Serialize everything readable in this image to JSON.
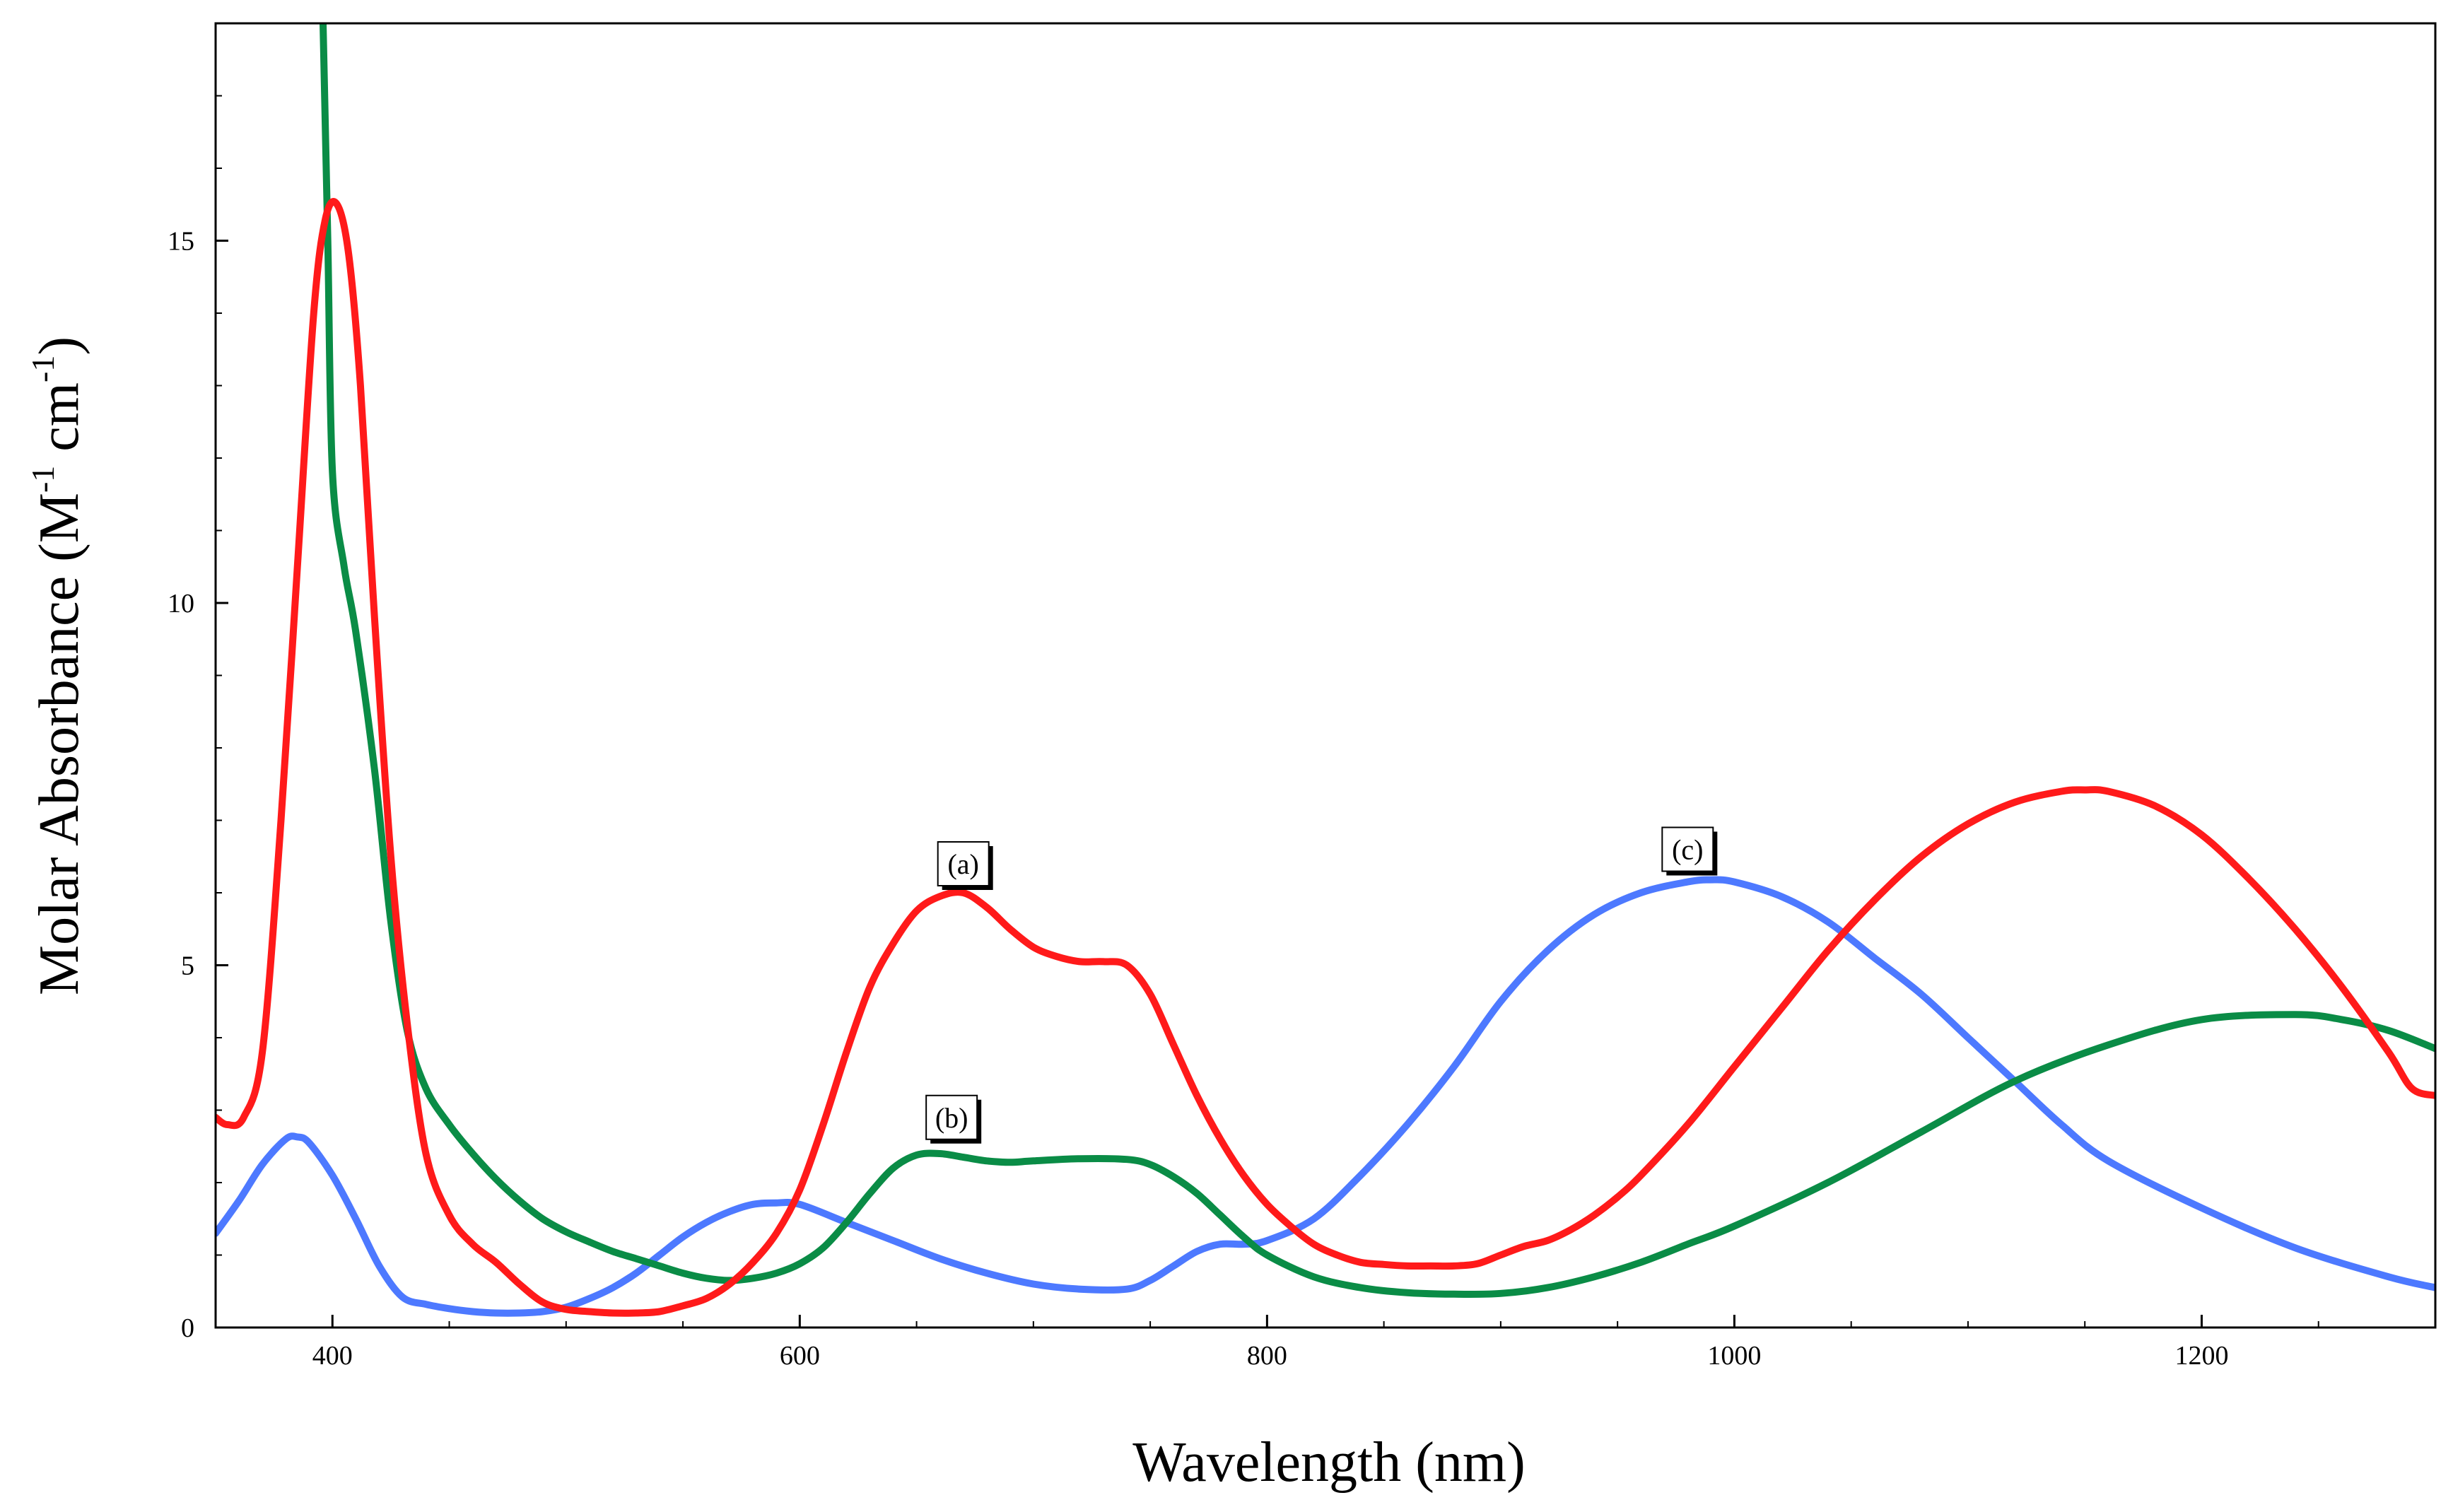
{
  "chart_data": {
    "type": "line",
    "title": "",
    "xlabel": "Wavelength (nm)",
    "ylabel": {
      "main": "Molar Absorbance (M",
      "sup1": "-1",
      "mid": " cm",
      "sup2": "-1",
      "end": ")"
    },
    "xlim": [
      350,
      1300
    ],
    "ylim": [
      0,
      18
    ],
    "grid": false,
    "x_ticks": [
      {
        "value": 400,
        "label": "400"
      },
      {
        "value": 600,
        "label": "600"
      },
      {
        "value": 800,
        "label": "800"
      },
      {
        "value": 1000,
        "label": "1000"
      },
      {
        "value": 1200,
        "label": "1200"
      }
    ],
    "y_ticks": [
      {
        "value": 0,
        "label": "0"
      },
      {
        "value": 5,
        "label": "5"
      },
      {
        "value": 10,
        "label": "10"
      },
      {
        "value": 15,
        "label": "15"
      }
    ],
    "series": [
      {
        "name": "(a)",
        "color": "#ff1a1a",
        "x": [
          350,
          355,
          362,
          370,
          378,
          385,
          392,
          397,
          402,
          407,
          412,
          418,
          425,
          432,
          440,
          450,
          460,
          470,
          480,
          490,
          500,
          510,
          520,
          530,
          540,
          550,
          560,
          570,
          580,
          590,
          600,
          610,
          620,
          630,
          640,
          650,
          660,
          670,
          680,
          690,
          700,
          710,
          720,
          730,
          740,
          750,
          760,
          770,
          780,
          790,
          800,
          810,
          820,
          830,
          840,
          850,
          860,
          870,
          880,
          890,
          900,
          910,
          920,
          930,
          940,
          950,
          960,
          980,
          1000,
          1020,
          1040,
          1060,
          1080,
          1100,
          1120,
          1140,
          1150,
          1160,
          1180,
          1200,
          1220,
          1240,
          1260,
          1280,
          1290,
          1300
        ],
        "y": [
          2.9,
          2.8,
          2.9,
          3.8,
          7.0,
          10.5,
          14.0,
          15.3,
          15.5,
          14.8,
          13.0,
          9.8,
          6.5,
          4.2,
          2.4,
          1.55,
          1.15,
          0.9,
          0.6,
          0.35,
          0.25,
          0.22,
          0.2,
          0.2,
          0.22,
          0.3,
          0.4,
          0.6,
          0.9,
          1.3,
          1.9,
          2.8,
          3.8,
          4.7,
          5.3,
          5.75,
          5.95,
          6.0,
          5.8,
          5.5,
          5.25,
          5.12,
          5.05,
          5.05,
          5.0,
          4.6,
          3.9,
          3.2,
          2.6,
          2.1,
          1.7,
          1.4,
          1.15,
          1.0,
          0.9,
          0.87,
          0.85,
          0.85,
          0.85,
          0.88,
          1.0,
          1.12,
          1.2,
          1.35,
          1.55,
          1.8,
          2.1,
          2.8,
          3.6,
          4.4,
          5.2,
          5.9,
          6.5,
          6.95,
          7.25,
          7.4,
          7.42,
          7.4,
          7.2,
          6.8,
          6.2,
          5.5,
          4.7,
          3.8,
          3.3,
          3.2
        ]
      },
      {
        "name": "(b)",
        "color": "#0a8c46",
        "x": [
          396,
          398,
          400,
          405,
          410,
          418,
          425,
          432,
          440,
          450,
          460,
          470,
          480,
          490,
          500,
          510,
          520,
          530,
          540,
          550,
          560,
          570,
          580,
          590,
          600,
          610,
          620,
          630,
          640,
          650,
          660,
          670,
          680,
          690,
          700,
          720,
          740,
          750,
          760,
          770,
          780,
          790,
          800,
          820,
          840,
          860,
          880,
          900,
          920,
          940,
          960,
          980,
          1000,
          1040,
          1080,
          1120,
          1160,
          1200,
          1240,
          1260,
          1280,
          1300
        ],
        "y": [
          18.0,
          15.0,
          11.8,
          10.5,
          9.6,
          7.7,
          5.6,
          4.1,
          3.3,
          2.8,
          2.4,
          2.05,
          1.75,
          1.5,
          1.32,
          1.18,
          1.05,
          0.95,
          0.85,
          0.75,
          0.68,
          0.65,
          0.68,
          0.75,
          0.88,
          1.1,
          1.45,
          1.85,
          2.2,
          2.38,
          2.4,
          2.35,
          2.3,
          2.28,
          2.3,
          2.33,
          2.32,
          2.25,
          2.08,
          1.85,
          1.55,
          1.25,
          1.0,
          0.7,
          0.55,
          0.48,
          0.46,
          0.47,
          0.55,
          0.7,
          0.9,
          1.15,
          1.4,
          2.0,
          2.7,
          3.4,
          3.9,
          4.25,
          4.32,
          4.25,
          4.1,
          3.85
        ]
      },
      {
        "name": "(c)",
        "color": "#4d79ff",
        "x": [
          350,
          360,
          370,
          380,
          385,
          390,
          400,
          410,
          420,
          430,
          440,
          450,
          460,
          470,
          480,
          490,
          500,
          510,
          520,
          530,
          540,
          550,
          560,
          570,
          580,
          590,
          600,
          620,
          640,
          660,
          680,
          700,
          720,
          740,
          750,
          760,
          770,
          780,
          790,
          800,
          820,
          840,
          860,
          880,
          900,
          920,
          940,
          960,
          980,
          990,
          1000,
          1020,
          1040,
          1060,
          1080,
          1100,
          1120,
          1140,
          1160,
          1200,
          1240,
          1280,
          1300
        ],
        "y": [
          1.3,
          1.75,
          2.25,
          2.6,
          2.63,
          2.55,
          2.1,
          1.5,
          0.85,
          0.42,
          0.32,
          0.26,
          0.22,
          0.2,
          0.2,
          0.22,
          0.28,
          0.4,
          0.55,
          0.75,
          1.0,
          1.25,
          1.45,
          1.6,
          1.7,
          1.72,
          1.7,
          1.45,
          1.2,
          0.95,
          0.75,
          0.6,
          0.53,
          0.53,
          0.65,
          0.85,
          1.05,
          1.15,
          1.15,
          1.2,
          1.5,
          2.1,
          2.8,
          3.6,
          4.5,
          5.2,
          5.7,
          6.0,
          6.15,
          6.18,
          6.15,
          5.95,
          5.6,
          5.1,
          4.6,
          4.0,
          3.4,
          2.8,
          2.3,
          1.65,
          1.1,
          0.7,
          0.55
        ]
      }
    ],
    "annotations": [
      {
        "label": "(a)",
        "x": 670,
        "y": 6.4
      },
      {
        "label": "(b)",
        "x": 665,
        "y": 2.9
      },
      {
        "label": "(c)",
        "x": 980,
        "y": 6.6
      }
    ]
  }
}
